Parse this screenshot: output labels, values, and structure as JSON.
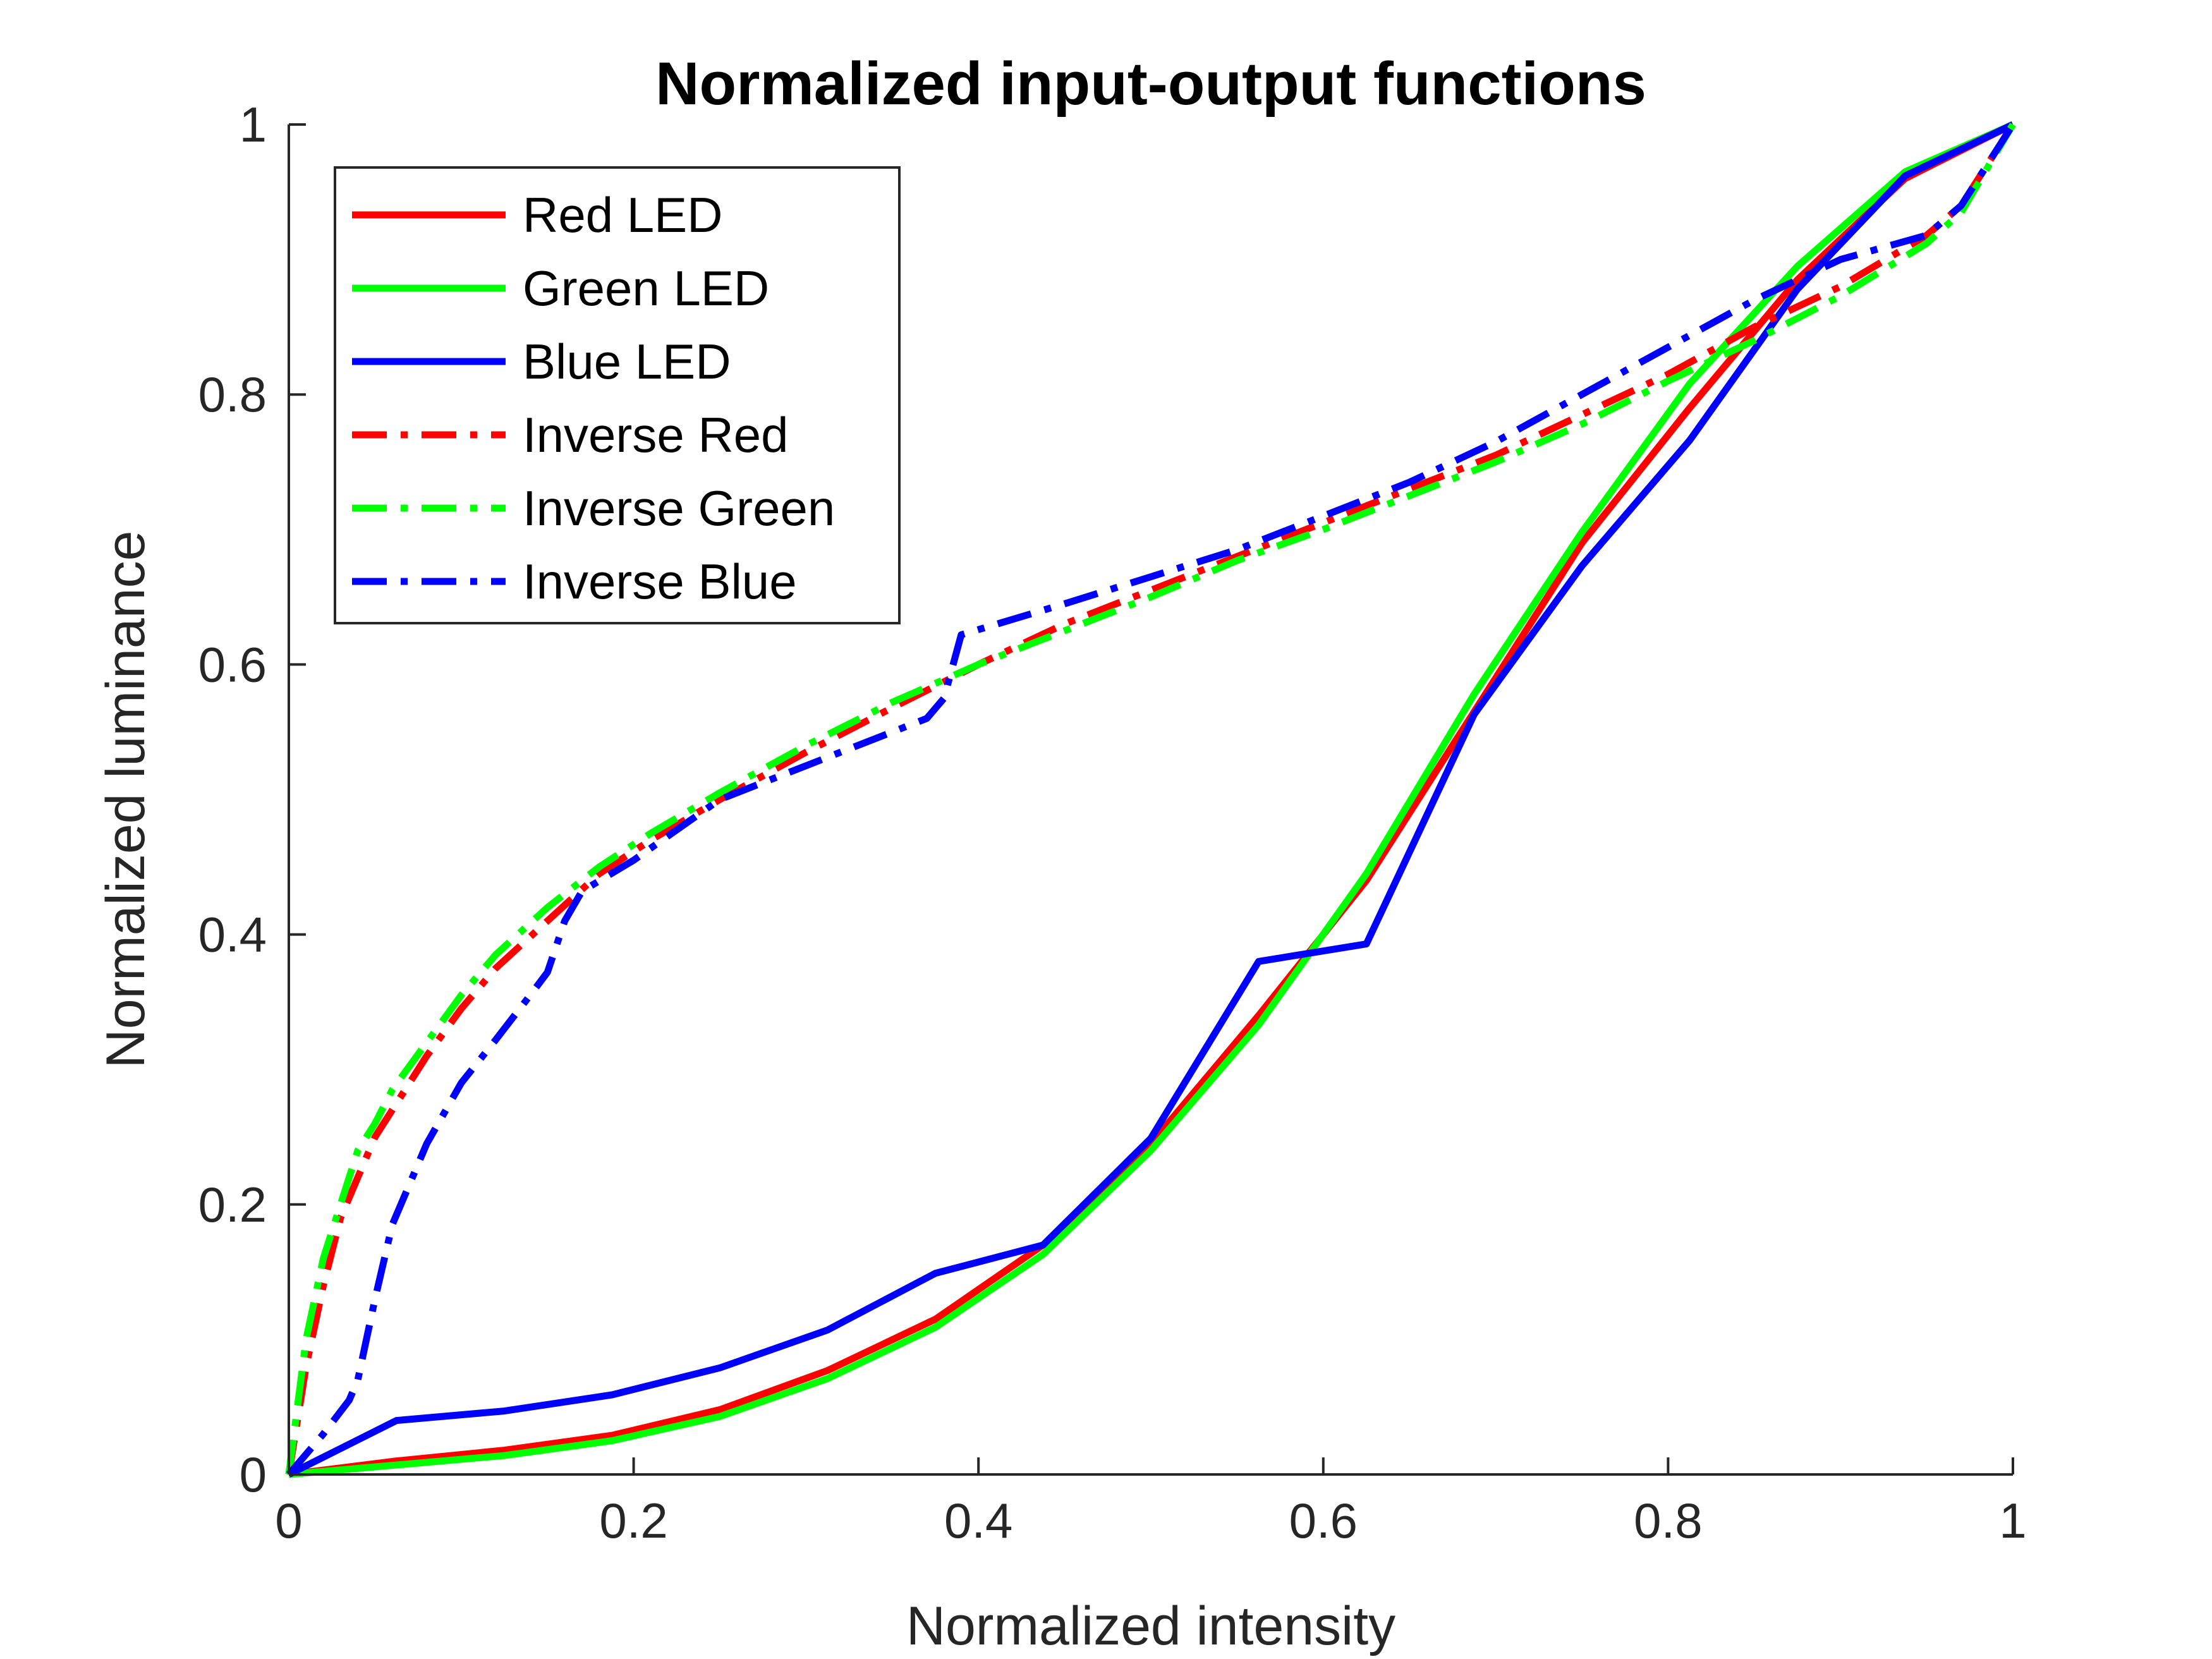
{
  "chart_data": {
    "type": "line",
    "title": "Normalized input-output functions",
    "xlabel": "Normalized intensity",
    "ylabel": "Normalized luminance",
    "xlim": [
      0,
      1
    ],
    "ylim": [
      0,
      1
    ],
    "xticks": [
      "0",
      "0.2",
      "0.4",
      "0.6",
      "0.8",
      "1"
    ],
    "yticks": [
      "0",
      "0.2",
      "0.4",
      "0.6",
      "0.8",
      "1"
    ],
    "grid": false,
    "legend_position": "top-left",
    "series": [
      {
        "name": "Red LED",
        "color": "#ff0000",
        "style": "solid",
        "x": [
          0,
          0.0625,
          0.125,
          0.1875,
          0.25,
          0.3125,
          0.375,
          0.4375,
          0.5,
          0.5625,
          0.625,
          0.6875,
          0.75,
          0.8125,
          0.875,
          0.9375,
          1
        ],
        "y": [
          0,
          0.01,
          0.018,
          0.029,
          0.048,
          0.077,
          0.115,
          0.17,
          0.245,
          0.34,
          0.44,
          0.565,
          0.69,
          0.79,
          0.885,
          0.96,
          1
        ]
      },
      {
        "name": "Green LED",
        "color": "#00ff00",
        "style": "solid",
        "x": [
          0,
          0.0625,
          0.125,
          0.1875,
          0.25,
          0.3125,
          0.375,
          0.4375,
          0.5,
          0.5625,
          0.625,
          0.6875,
          0.75,
          0.8125,
          0.875,
          0.9375,
          1
        ],
        "y": [
          0,
          0.007,
          0.014,
          0.025,
          0.043,
          0.071,
          0.109,
          0.163,
          0.24,
          0.333,
          0.445,
          0.578,
          0.698,
          0.808,
          0.895,
          0.965,
          1
        ]
      },
      {
        "name": "Blue LED",
        "color": "#0000ff",
        "style": "solid",
        "x": [
          0,
          0.0625,
          0.125,
          0.1875,
          0.25,
          0.3125,
          0.375,
          0.4375,
          0.5,
          0.5625,
          0.625,
          0.6875,
          0.75,
          0.8125,
          0.875,
          0.9375,
          1
        ],
        "y": [
          0,
          0.04,
          0.047,
          0.059,
          0.079,
          0.107,
          0.149,
          0.17,
          0.249,
          0.38,
          0.393,
          0.563,
          0.673,
          0.766,
          0.878,
          0.962,
          1
        ]
      },
      {
        "name": "Inverse Red",
        "color": "#ff0000",
        "style": "dashdot",
        "x": [
          0,
          0.01,
          0.02,
          0.03,
          0.04,
          0.05,
          0.06,
          0.08,
          0.1,
          0.12,
          0.15,
          0.18,
          0.21,
          0.25,
          0.3,
          0.35,
          0.4,
          0.45,
          0.5,
          0.55,
          0.6,
          0.65,
          0.7,
          0.75,
          0.8,
          0.85,
          0.9,
          0.95,
          0.97,
          1
        ],
        "y": [
          0,
          0.08,
          0.14,
          0.19,
          0.22,
          0.25,
          0.27,
          0.31,
          0.345,
          0.375,
          0.41,
          0.445,
          0.47,
          0.5,
          0.535,
          0.568,
          0.6,
          0.63,
          0.655,
          0.68,
          0.705,
          0.73,
          0.755,
          0.785,
          0.815,
          0.85,
          0.88,
          0.918,
          0.94,
          1
        ]
      },
      {
        "name": "Inverse Green",
        "color": "#00ff00",
        "style": "dashdot",
        "x": [
          0,
          0.005,
          0.01,
          0.02,
          0.03,
          0.04,
          0.05,
          0.06,
          0.08,
          0.1,
          0.12,
          0.15,
          0.18,
          0.21,
          0.25,
          0.3,
          0.35,
          0.4,
          0.45,
          0.5,
          0.55,
          0.6,
          0.65,
          0.7,
          0.75,
          0.8,
          0.85,
          0.9,
          0.95,
          0.97,
          1
        ],
        "y": [
          0,
          0.05,
          0.1,
          0.16,
          0.2,
          0.24,
          0.26,
          0.285,
          0.32,
          0.355,
          0.385,
          0.42,
          0.45,
          0.475,
          0.505,
          0.54,
          0.572,
          0.6,
          0.625,
          0.65,
          0.677,
          0.7,
          0.725,
          0.75,
          0.778,
          0.81,
          0.84,
          0.873,
          0.912,
          0.935,
          1
        ]
      },
      {
        "name": "Inverse Blue",
        "color": "#0000ff",
        "style": "dashdot",
        "x": [
          0,
          0.02,
          0.035,
          0.04,
          0.05,
          0.06,
          0.08,
          0.1,
          0.12,
          0.14,
          0.15,
          0.16,
          0.17,
          0.2,
          0.25,
          0.3,
          0.35,
          0.37,
          0.38,
          0.39,
          0.45,
          0.5,
          0.55,
          0.6,
          0.65,
          0.7,
          0.75,
          0.8,
          0.85,
          0.9,
          0.95,
          0.97,
          1
        ],
        "y": [
          0,
          0.03,
          0.055,
          0.07,
          0.13,
          0.185,
          0.245,
          0.29,
          0.322,
          0.355,
          0.372,
          0.41,
          0.432,
          0.455,
          0.5,
          0.525,
          0.55,
          0.56,
          0.575,
          0.622,
          0.645,
          0.665,
          0.685,
          0.71,
          0.735,
          0.765,
          0.8,
          0.835,
          0.87,
          0.9,
          0.918,
          0.94,
          1
        ]
      }
    ]
  }
}
